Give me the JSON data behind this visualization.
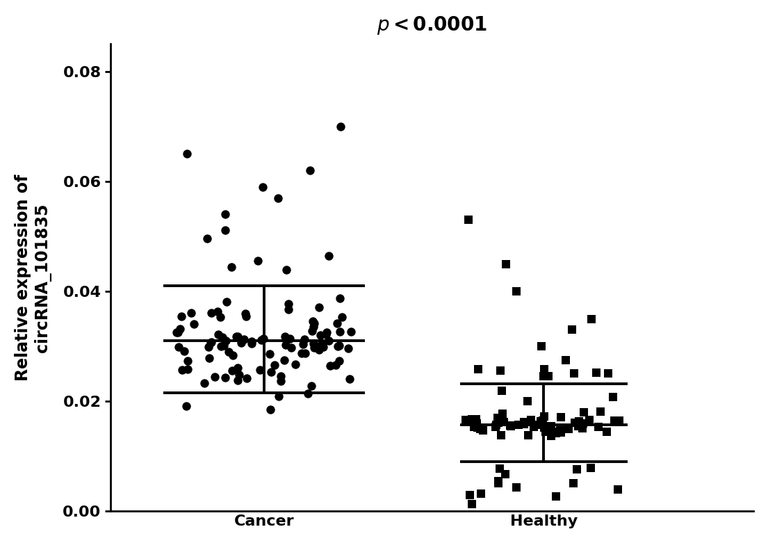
{
  "title_italic": "p",
  "title_rest": "<0.0001",
  "ylabel_line1": "Relative expression of",
  "ylabel_line2": "circRNA_101835",
  "categories": [
    "Cancer",
    "Healthy"
  ],
  "ylim": [
    0.0,
    0.085
  ],
  "yticks": [
    0.0,
    0.02,
    0.04,
    0.06,
    0.08
  ],
  "ytick_labels": [
    "0.00",
    "0.02",
    "0.04",
    "0.06",
    "0.08"
  ],
  "cancer_mean": 0.031,
  "cancer_upper": 0.041,
  "cancer_lower": 0.0215,
  "healthy_mean": 0.01575,
  "healthy_upper": 0.0232,
  "healthy_lower": 0.009,
  "background_color": "#ffffff",
  "point_color": "#000000",
  "errorbar_color": "#000000",
  "title_fontsize": 20,
  "axis_label_fontsize": 17,
  "tick_fontsize": 16,
  "category_fontsize": 20
}
